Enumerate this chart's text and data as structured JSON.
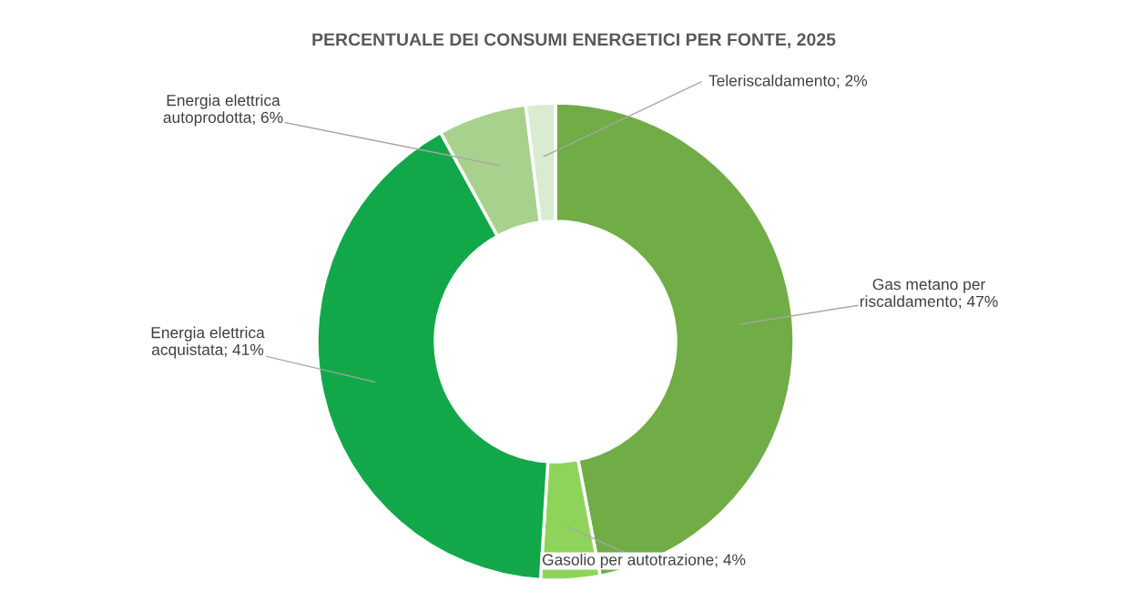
{
  "chart_data": {
    "type": "donut",
    "title": "PERCENTUALE DEI CONSUMI ENERGETICI PER FONTE, 2025",
    "categories": [
      "Gas metano per riscaldamento",
      "Gasolio per autotrazione",
      "Energia elettrica acquistata",
      "Energia elettrica autoprodotta",
      "Teleriscaldamento"
    ],
    "values": [
      47,
      4,
      41,
      6,
      2
    ],
    "value_labels": [
      "47%",
      "4%",
      "41%",
      "6%",
      "2%"
    ],
    "colors": [
      "#70ad47",
      "#8fd45a",
      "#12a84a",
      "#a9d18e",
      "#d9ecd0"
    ],
    "legend": false
  }
}
